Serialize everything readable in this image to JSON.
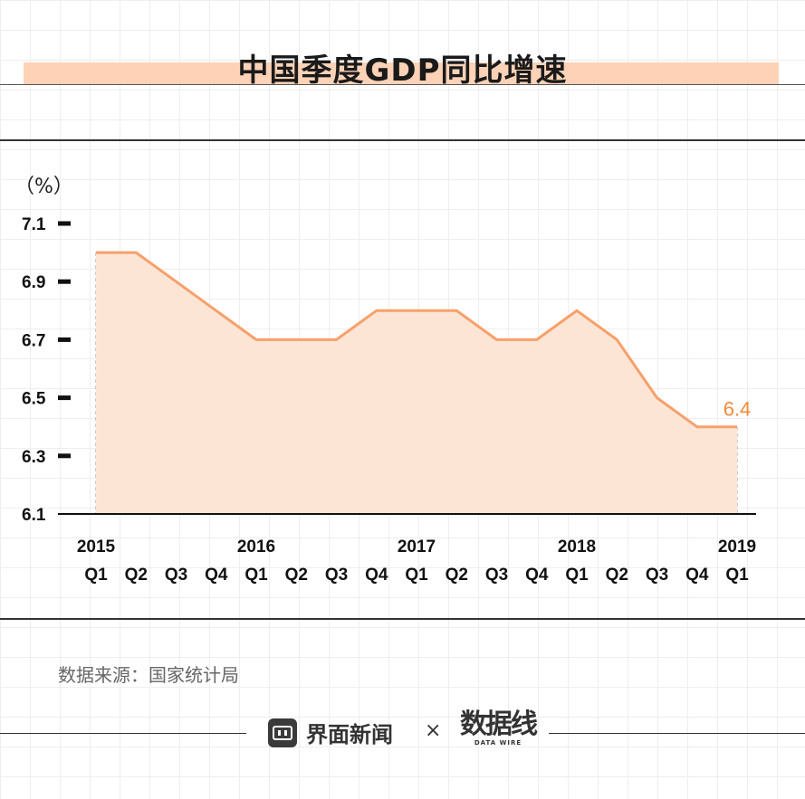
{
  "header": {
    "title": "中国季度GDP同比增速"
  },
  "chart_data": {
    "type": "area",
    "title": "中国季度GDP同比增速",
    "ylabel": "（%）",
    "xlabel": "",
    "ylim": [
      6.1,
      7.1
    ],
    "yticks": [
      "6.1",
      "6.3",
      "6.5",
      "6.7",
      "6.9",
      "7.1"
    ],
    "year_labels": [
      {
        "label": "2015",
        "index": 0
      },
      {
        "label": "2016",
        "index": 4
      },
      {
        "label": "2017",
        "index": 8
      },
      {
        "label": "2018",
        "index": 12
      },
      {
        "label": "2019",
        "index": 16
      }
    ],
    "categories": [
      "Q1",
      "Q2",
      "Q3",
      "Q4",
      "Q1",
      "Q2",
      "Q3",
      "Q4",
      "Q1",
      "Q2",
      "Q3",
      "Q4",
      "Q1",
      "Q2",
      "Q3",
      "Q4",
      "Q1"
    ],
    "values": [
      7.0,
      7.0,
      6.9,
      6.8,
      6.7,
      6.7,
      6.7,
      6.8,
      6.8,
      6.8,
      6.7,
      6.7,
      6.8,
      6.7,
      6.5,
      6.4,
      6.4
    ],
    "last_label": "6.4",
    "colors": {
      "line": "#f7a06a",
      "fill": "#fde5d6",
      "label": "#f28a3c",
      "axis": "#111111"
    }
  },
  "footer": {
    "source": "数据来源：国家统计局",
    "brand": "界面新闻",
    "separator": "×",
    "partner_cn": "数据线",
    "partner_en": "DATA WIRE"
  }
}
